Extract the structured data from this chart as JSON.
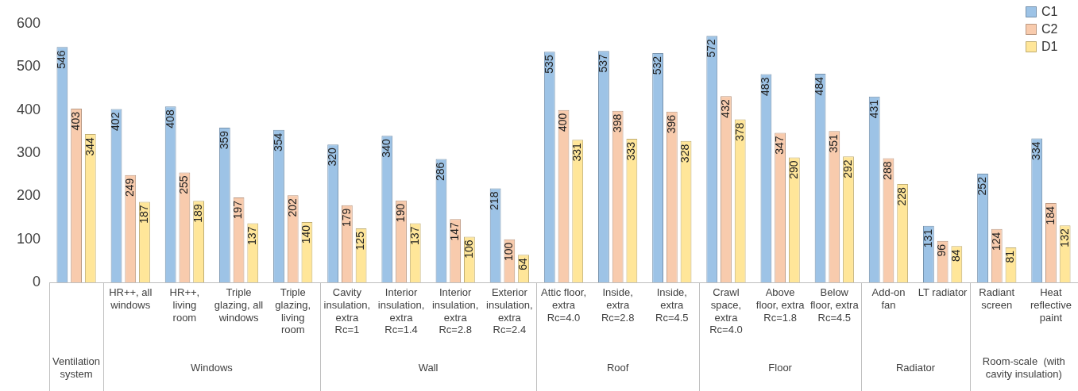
{
  "chart_data": {
    "type": "bar",
    "categories": [
      null,
      "HR++, all windows",
      "HR++, living room",
      "Triple glazing, all windows",
      "Triple glazing, living room",
      "Cavity insulation, extra Rc=1",
      "Interior insulation, extra Rc=1.4",
      "Interior insulation, extra Rc=2.8",
      "Exterior insulation, extra Rc=2.4",
      "Attic floor, extra Rc=4.0",
      "Inside, extra Rc=2.8",
      "Inside, extra Rc=4.5",
      "Crawl space, extra Rc=4.0",
      "Above floor, extra Rc=1.8",
      "Below floor, extra Rc=4.5",
      "Add-on fan",
      "LT radiator",
      "Radiant screen",
      "Heat reflective paint"
    ],
    "series": [
      {
        "name": "C1",
        "color": "#9dc3e6",
        "values": [
          546,
          402,
          408,
          359,
          354,
          320,
          340,
          286,
          218,
          535,
          537,
          532,
          572,
          483,
          484,
          431,
          131,
          252,
          334
        ]
      },
      {
        "name": "C2",
        "color": "#f8cbad",
        "values": [
          403,
          249,
          255,
          197,
          202,
          179,
          190,
          147,
          100,
          400,
          398,
          396,
          432,
          347,
          351,
          288,
          96,
          124,
          184
        ]
      },
      {
        "name": "D1",
        "color": "#ffe699",
        "values": [
          344,
          187,
          189,
          137,
          140,
          125,
          137,
          106,
          64,
          331,
          333,
          328,
          378,
          290,
          292,
          228,
          84,
          81,
          132
        ]
      }
    ],
    "annotations": [
      "Ventilation system",
      "Windows",
      "Wall",
      "Roof",
      "Floor",
      "Radiator",
      "Room-scale  (with cavity insulation)"
    ],
    "ylim": [
      0,
      600
    ],
    "yticks": [
      0,
      100,
      200,
      300,
      400,
      500,
      600
    ],
    "grid": false,
    "legend": "top right",
    "data_labels": true
  }
}
